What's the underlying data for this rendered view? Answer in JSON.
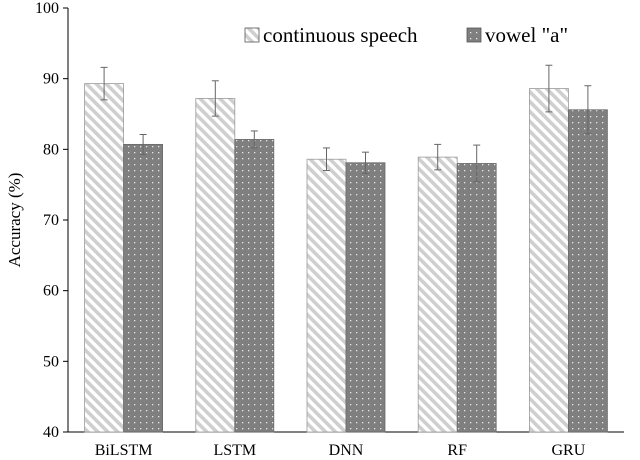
{
  "chart_data": {
    "type": "bar",
    "title": "",
    "xlabel": "",
    "ylabel": "Accuracy (%)",
    "ylim": [
      40,
      100
    ],
    "yticks": [
      40,
      50,
      60,
      70,
      80,
      90,
      100
    ],
    "grid": false,
    "legend_position": "top-right",
    "categories": [
      "BiLSTM",
      "LSTM",
      "DNN",
      "RF",
      "GRU"
    ],
    "series": [
      {
        "name": "continuous speech",
        "values": [
          89.3,
          87.2,
          78.6,
          78.9,
          88.6
        ],
        "errors": [
          2.3,
          2.5,
          1.6,
          1.8,
          3.3
        ],
        "color": "#d9d9d9",
        "pattern": "diagonal-stripes"
      },
      {
        "name": "vowel \"a\"",
        "values": [
          80.7,
          81.4,
          78.1,
          78.0,
          85.6
        ],
        "errors": [
          1.4,
          1.2,
          1.5,
          2.6,
          3.4
        ],
        "color": "#808080",
        "pattern": "dots"
      }
    ]
  }
}
